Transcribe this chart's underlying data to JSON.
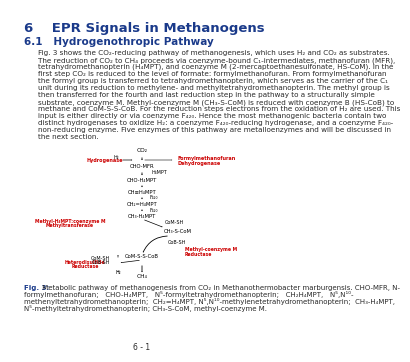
{
  "title": "6    EPR Signals in Methanogens",
  "section": "6.1   Hydrogenothropic Pathway",
  "body_lines": [
    "Fig. 3 shows the CO₂-reducing pathway of methanogenesis, which uses H₂ and CO₂ as substrates.",
    "The reduction of CO₂ to CH₄ proceeds via coenzyme-bound C₁-intermediates, methanofuran (MFR),",
    "tetrahydromethanopterin (H₄MPT), and coenzyme M (2-mercaptoethanesulfonate, HS-CoM). In the",
    "first step CO₂ is reduced to the level of formate: formylmethanofuran. From formylmethanofuran",
    "the formyl group is transferred to tetrahydromethanopterin, which serves as the carrier of the C₁",
    "unit during its reduction to methylene- and methyltetrahydromethanopterin. The methyl group is",
    "then transferred for the fourth and last reduction step in the pathway to a structurally simple",
    "substrate, coenzyme M. Methyl-coenzyme M (CH₃-S-CoM) is reduced with coenzyme B (HS-CoB) to",
    "methane and CoM-S-S-CoB. For the reduction steps electrons from the oxidation of H₂ are used. This",
    "input is either directly or via coenzyme F₄₂₀. Hence the most methanogenic bacteria contain two",
    "distinct hydrogenases to oxidize H₂: a coenzyme F₄₂₀-reducing hydrogenase, and a coenzyme F₄₂₀-",
    "non-reducing enzyme. Five enzymes of this pathway are metalloenzymes and will be discussed in",
    "the next section."
  ],
  "caption_bold": "Fig. 3:",
  "caption_lines": [
    " Metabolic pathway of methanogenesis from CO₂ in Methanothermobacter marburgensis. CHO-MFR, N-",
    "formylmethanofuran;   CHO-H₄MPT,   N⁵-formyltetrahydromethanopterin;   CH₂H₄MPT,   N⁵,N¹⁰-",
    "methenyltetrahydromethanopterin;  CH₂=H₄MPT, N⁵,N¹⁰-methylenetetrahydromethanopterin;  CH₃-H₄MPT,",
    "N⁵-methyltetrahydromethanopterin; CH₃-S-CoM, methyl-coenzyme M."
  ],
  "page_number": "6 - 1",
  "title_color": "#1a3a8a",
  "section_color": "#1a3a8a",
  "body_fontsize": 5.2,
  "title_fontsize": 9.5,
  "section_fontsize": 7.5,
  "caption_fontsize": 5.0,
  "page_fontsize": 5.5,
  "bg_color": "#ffffff",
  "text_color": "#2a2a2a",
  "caption_color": "#1a3a8a",
  "red_color": "#cc0000",
  "black": "#000000"
}
